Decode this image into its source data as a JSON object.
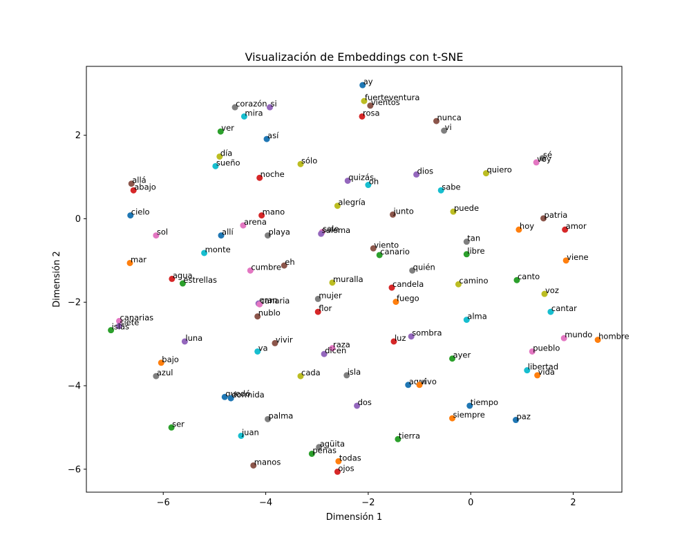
{
  "chart_data": {
    "type": "scatter",
    "title": "Visualización de Embeddings con t-SNE",
    "xlabel": "Dimensión 1",
    "ylabel": "Dimensión 2",
    "xlim": [
      -7.5,
      2.95
    ],
    "ylim": [
      -6.55,
      3.65
    ],
    "xticks": [
      -6,
      -4,
      -2,
      0,
      2
    ],
    "yticks": [
      -6,
      -4,
      -2,
      0,
      2
    ],
    "xtick_labels": [
      "−6",
      "−4",
      "−2",
      "0",
      "2"
    ],
    "ytick_labels": [
      "−6",
      "−4",
      "−2",
      "0",
      "2"
    ],
    "grid": false,
    "legend": "none",
    "points": [
      {
        "label": "ay",
        "x": -2.11,
        "y": 3.2,
        "color": "#1f77b4"
      },
      {
        "label": "fuerteventura",
        "x": -2.08,
        "y": 2.82,
        "color": "#bcbd22"
      },
      {
        "label": "vientos",
        "x": -1.96,
        "y": 2.71,
        "color": "#8c564b"
      },
      {
        "label": "corazón",
        "x": -4.6,
        "y": 2.67,
        "color": "#7f7f7f"
      },
      {
        "label": "si",
        "x": -3.92,
        "y": 2.67,
        "color": "#9467bd"
      },
      {
        "label": "rosa",
        "x": -2.12,
        "y": 2.45,
        "color": "#d62728"
      },
      {
        "label": "mira",
        "x": -4.42,
        "y": 2.45,
        "color": "#17becf"
      },
      {
        "label": "nunca",
        "x": -0.67,
        "y": 2.34,
        "color": "#8c564b"
      },
      {
        "label": "vi",
        "x": -0.52,
        "y": 2.11,
        "color": "#7f7f7f"
      },
      {
        "label": "ver",
        "x": -4.88,
        "y": 2.09,
        "color": "#2ca02c"
      },
      {
        "label": "así",
        "x": -3.98,
        "y": 1.91,
        "color": "#1f77b4"
      },
      {
        "label": "sé",
        "x": 1.4,
        "y": 1.45,
        "color": "#7f7f7f"
      },
      {
        "label": "voy",
        "x": 1.28,
        "y": 1.35,
        "color": "#e377c2"
      },
      {
        "label": "día",
        "x": -4.9,
        "y": 1.49,
        "color": "#bcbd22"
      },
      {
        "label": "sólo",
        "x": -3.32,
        "y": 1.31,
        "color": "#bcbd22"
      },
      {
        "label": "sueño",
        "x": -4.98,
        "y": 1.26,
        "color": "#17becf"
      },
      {
        "label": "quiero",
        "x": 0.3,
        "y": 1.09,
        "color": "#bcbd22"
      },
      {
        "label": "dios",
        "x": -1.06,
        "y": 1.06,
        "color": "#9467bd"
      },
      {
        "label": "noche",
        "x": -4.12,
        "y": 0.98,
        "color": "#d62728"
      },
      {
        "label": "quizás",
        "x": -2.4,
        "y": 0.91,
        "color": "#9467bd"
      },
      {
        "label": "oh",
        "x": -2.0,
        "y": 0.81,
        "color": "#17becf"
      },
      {
        "label": "allá",
        "x": -6.62,
        "y": 0.84,
        "color": "#8c564b"
      },
      {
        "label": "sabe",
        "x": -0.58,
        "y": 0.68,
        "color": "#17becf"
      },
      {
        "label": "abajo",
        "x": -6.58,
        "y": 0.68,
        "color": "#d62728"
      },
      {
        "label": "alegría",
        "x": -2.6,
        "y": 0.31,
        "color": "#bcbd22"
      },
      {
        "label": "puede",
        "x": -0.34,
        "y": 0.17,
        "color": "#bcbd22"
      },
      {
        "label": "junto",
        "x": -1.52,
        "y": 0.1,
        "color": "#8c564b"
      },
      {
        "label": "cielo",
        "x": -6.64,
        "y": 0.08,
        "color": "#1f77b4"
      },
      {
        "label": "mano",
        "x": -4.08,
        "y": 0.08,
        "color": "#d62728"
      },
      {
        "label": "patria",
        "x": 1.42,
        "y": 0.01,
        "color": "#8c564b"
      },
      {
        "label": "arena",
        "x": -4.44,
        "y": -0.16,
        "color": "#e377c2"
      },
      {
        "label": "hoy",
        "x": 0.94,
        "y": -0.26,
        "color": "#ff7f0e"
      },
      {
        "label": "amor",
        "x": 1.84,
        "y": -0.26,
        "color": "#d62728"
      },
      {
        "label": "sale",
        "x": -2.9,
        "y": -0.32,
        "color": "#e377c2"
      },
      {
        "label": "salema",
        "x": -2.92,
        "y": -0.36,
        "color": "#9467bd"
      },
      {
        "label": "sol",
        "x": -6.14,
        "y": -0.4,
        "color": "#e377c2"
      },
      {
        "label": "allí",
        "x": -4.87,
        "y": -0.4,
        "color": "#1f77b4"
      },
      {
        "label": "playa",
        "x": -3.96,
        "y": -0.4,
        "color": "#7f7f7f"
      },
      {
        "label": "tan",
        "x": -0.08,
        "y": -0.55,
        "color": "#7f7f7f"
      },
      {
        "label": "viento",
        "x": -1.9,
        "y": -0.71,
        "color": "#8c564b"
      },
      {
        "label": "monte",
        "x": -5.2,
        "y": -0.82,
        "color": "#17becf"
      },
      {
        "label": "libre",
        "x": -0.08,
        "y": -0.85,
        "color": "#2ca02c"
      },
      {
        "label": "canario",
        "x": -1.78,
        "y": -0.87,
        "color": "#2ca02c"
      },
      {
        "label": "viene",
        "x": 1.86,
        "y": -1.0,
        "color": "#ff7f0e"
      },
      {
        "label": "mar",
        "x": -6.65,
        "y": -1.06,
        "color": "#ff7f0e"
      },
      {
        "label": "eh",
        "x": -3.64,
        "y": -1.12,
        "color": "#8c564b"
      },
      {
        "label": "cumbre",
        "x": -4.3,
        "y": -1.24,
        "color": "#e377c2"
      },
      {
        "label": "quién",
        "x": -1.14,
        "y": -1.24,
        "color": "#7f7f7f"
      },
      {
        "label": "agua",
        "x": -5.83,
        "y": -1.44,
        "color": "#d62728"
      },
      {
        "label": "canto",
        "x": 0.9,
        "y": -1.47,
        "color": "#2ca02c"
      },
      {
        "label": "muralla",
        "x": -2.7,
        "y": -1.53,
        "color": "#bcbd22"
      },
      {
        "label": "estrellas",
        "x": -5.62,
        "y": -1.55,
        "color": "#2ca02c"
      },
      {
        "label": "camino",
        "x": -0.24,
        "y": -1.57,
        "color": "#bcbd22"
      },
      {
        "label": "candela",
        "x": -1.54,
        "y": -1.65,
        "color": "#d62728"
      },
      {
        "label": "voz",
        "x": 1.44,
        "y": -1.8,
        "color": "#bcbd22"
      },
      {
        "label": "mujer",
        "x": -2.98,
        "y": -1.92,
        "color": "#7f7f7f"
      },
      {
        "label": "fuego",
        "x": -1.46,
        "y": -1.99,
        "color": "#ff7f0e"
      },
      {
        "label": "gran",
        "x": -4.14,
        "y": -2.03,
        "color": "#9467bd"
      },
      {
        "label": "canaria",
        "x": -4.12,
        "y": -2.05,
        "color": "#e377c2"
      },
      {
        "label": "flor",
        "x": -2.98,
        "y": -2.23,
        "color": "#d62728"
      },
      {
        "label": "cantar",
        "x": 1.56,
        "y": -2.23,
        "color": "#17becf"
      },
      {
        "label": "nublo",
        "x": -4.16,
        "y": -2.34,
        "color": "#8c564b"
      },
      {
        "label": "alma",
        "x": -0.08,
        "y": -2.42,
        "color": "#17becf"
      },
      {
        "label": "canarias",
        "x": -6.86,
        "y": -2.45,
        "color": "#e377c2"
      },
      {
        "label": "siete",
        "x": -6.86,
        "y": -2.57,
        "color": "#9467bd"
      },
      {
        "label": "islas",
        "x": -7.02,
        "y": -2.67,
        "color": "#2ca02c"
      },
      {
        "label": "sombra",
        "x": -1.16,
        "y": -2.82,
        "color": "#9467bd"
      },
      {
        "label": "mundo",
        "x": 1.82,
        "y": -2.86,
        "color": "#e377c2"
      },
      {
        "label": "hombre",
        "x": 2.48,
        "y": -2.9,
        "color": "#ff7f0e"
      },
      {
        "label": "luz",
        "x": -1.5,
        "y": -2.94,
        "color": "#d62728"
      },
      {
        "label": "luna",
        "x": -5.58,
        "y": -2.94,
        "color": "#9467bd"
      },
      {
        "label": "vivir",
        "x": -3.82,
        "y": -2.98,
        "color": "#8c564b"
      },
      {
        "label": "raza",
        "x": -2.7,
        "y": -3.1,
        "color": "#e377c2"
      },
      {
        "label": "va",
        "x": -4.16,
        "y": -3.18,
        "color": "#17becf"
      },
      {
        "label": "pueblo",
        "x": 1.2,
        "y": -3.18,
        "color": "#e377c2"
      },
      {
        "label": "dicen",
        "x": -2.86,
        "y": -3.24,
        "color": "#9467bd"
      },
      {
        "label": "ayer",
        "x": -0.36,
        "y": -3.35,
        "color": "#2ca02c"
      },
      {
        "label": "bajo",
        "x": -6.04,
        "y": -3.45,
        "color": "#ff7f0e"
      },
      {
        "label": "libertad",
        "x": 1.1,
        "y": -3.63,
        "color": "#17becf"
      },
      {
        "label": "vida",
        "x": 1.3,
        "y": -3.75,
        "color": "#ff7f0e"
      },
      {
        "label": "azul",
        "x": -6.14,
        "y": -3.77,
        "color": "#7f7f7f"
      },
      {
        "label": "cada",
        "x": -3.32,
        "y": -3.77,
        "color": "#bcbd22"
      },
      {
        "label": "isla",
        "x": -2.42,
        "y": -3.75,
        "color": "#7f7f7f"
      },
      {
        "label": "aquí",
        "x": -1.22,
        "y": -3.98,
        "color": "#1f77b4"
      },
      {
        "label": "vivo",
        "x": -1.0,
        "y": -3.98,
        "color": "#ff7f0e"
      },
      {
        "label": "quedó",
        "x": -4.8,
        "y": -4.27,
        "color": "#1f77b4"
      },
      {
        "label": "dormida",
        "x": -4.68,
        "y": -4.3,
        "color": "#1f77b4"
      },
      {
        "label": "dos",
        "x": -2.22,
        "y": -4.48,
        "color": "#9467bd"
      },
      {
        "label": "tiempo",
        "x": -0.02,
        "y": -4.48,
        "color": "#1f77b4"
      },
      {
        "label": "siempre",
        "x": -0.36,
        "y": -4.78,
        "color": "#ff7f0e"
      },
      {
        "label": "palma",
        "x": -3.96,
        "y": -4.8,
        "color": "#7f7f7f"
      },
      {
        "label": "paz",
        "x": 0.88,
        "y": -4.82,
        "color": "#1f77b4"
      },
      {
        "label": "ser",
        "x": -5.84,
        "y": -5.0,
        "color": "#2ca02c"
      },
      {
        "label": "juan",
        "x": -4.48,
        "y": -5.2,
        "color": "#17becf"
      },
      {
        "label": "tierra",
        "x": -1.42,
        "y": -5.28,
        "color": "#2ca02c"
      },
      {
        "label": "agüita",
        "x": -2.96,
        "y": -5.47,
        "color": "#7f7f7f"
      },
      {
        "label": "peñas",
        "x": -3.1,
        "y": -5.63,
        "color": "#2ca02c"
      },
      {
        "label": "todas",
        "x": -2.58,
        "y": -5.81,
        "color": "#ff7f0e"
      },
      {
        "label": "manos",
        "x": -4.24,
        "y": -5.91,
        "color": "#8c564b"
      },
      {
        "label": "ojos",
        "x": -2.6,
        "y": -6.06,
        "color": "#d62728"
      }
    ]
  }
}
